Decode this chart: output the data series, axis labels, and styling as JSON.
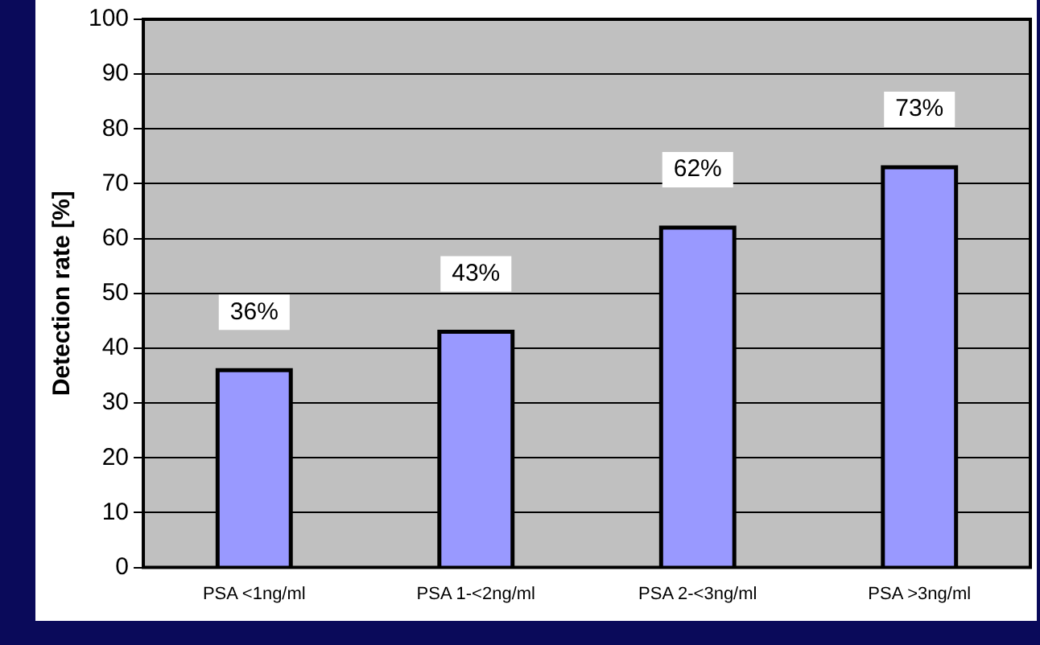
{
  "chart_data": {
    "type": "bar",
    "ylabel": "Detection rate [%]",
    "categories": [
      "PSA <1ng/ml",
      "PSA 1-<2ng/ml",
      "PSA 2-<3ng/ml",
      "PSA >3ng/ml"
    ],
    "values": [
      36,
      43,
      62,
      73
    ],
    "value_labels": [
      "36%",
      "43%",
      "62%",
      "73%"
    ],
    "color": "#9999ff",
    "ylim": [
      0,
      100
    ],
    "yticks": [
      0,
      10,
      20,
      30,
      40,
      50,
      60,
      70,
      80,
      90,
      100
    ],
    "grid": "y",
    "legend": false
  }
}
